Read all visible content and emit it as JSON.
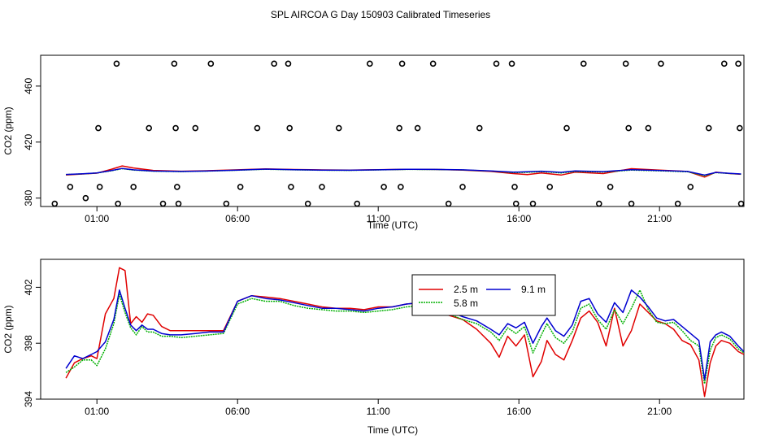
{
  "title": "SPL AIRCOA G  Day 150903  Calibrated Timeseries",
  "colors": {
    "s1": "#e00000",
    "s2": "#00b000",
    "s3": "#0000d0"
  },
  "chart_data": [
    {
      "id": "top",
      "type": "line+scatter",
      "xlabel": "Time (UTC)",
      "ylabel": "CO2 (ppm)",
      "xlim": [
        -1.0,
        24.0
      ],
      "ylim": [
        374.0,
        482.0
      ],
      "xticks": [
        1,
        6,
        11,
        16,
        21
      ],
      "xtick_labels": [
        "01:00",
        "06:00",
        "11:00",
        "16:00",
        "21:00"
      ],
      "yticks": [
        380,
        420,
        460
      ],
      "ytick_labels": [
        "380",
        "420",
        "460"
      ],
      "series": [
        {
          "name": "2.5 m",
          "color": "#e00000",
          "x": [
            -0.1,
            0.5,
            1.0,
            1.5,
            1.9,
            2.3,
            3.0,
            4.0,
            5.0,
            6.0,
            7.0,
            8.0,
            9.0,
            10.0,
            11.0,
            12.0,
            13.0,
            14.0,
            15.0,
            15.8,
            16.3,
            16.8,
            17.5,
            18.0,
            19.0,
            20.0,
            21.0,
            22.0,
            22.6,
            23.0,
            23.5,
            23.9
          ],
          "y": [
            396.5,
            397.2,
            397.8,
            400.5,
            403.0,
            401.5,
            399.8,
            399.2,
            399.6,
            400.2,
            400.8,
            400.4,
            400.1,
            400.0,
            400.3,
            400.6,
            400.5,
            400.0,
            399.0,
            397.5,
            396.8,
            398.0,
            396.5,
            398.5,
            397.5,
            401.0,
            400.0,
            399.0,
            395.0,
            398.5,
            397.5,
            397.0
          ]
        },
        {
          "name": "5.8 m",
          "color": "#00b000",
          "x": [
            -0.1,
            0.5,
            1.0,
            1.5,
            1.9,
            2.3,
            3.0,
            4.0,
            5.0,
            6.0,
            7.0,
            8.0,
            9.0,
            10.0,
            11.0,
            12.0,
            13.0,
            14.0,
            15.0,
            15.8,
            16.3,
            16.8,
            17.5,
            18.0,
            19.0,
            20.0,
            21.0,
            22.0,
            22.6,
            23.0,
            23.5,
            23.9
          ],
          "y": [
            396.8,
            397.3,
            397.9,
            399.5,
            401.0,
            400.0,
            399.2,
            398.9,
            399.3,
            399.9,
            400.6,
            400.2,
            399.9,
            399.8,
            400.1,
            400.5,
            400.4,
            400.1,
            399.3,
            398.2,
            398.4,
            398.9,
            398.0,
            399.0,
            398.6,
            400.0,
            399.5,
            398.8,
            396.0,
            398.2,
            397.6,
            397.1
          ]
        },
        {
          "name": "9.1 m",
          "color": "#0000d0",
          "x": [
            -0.1,
            0.5,
            1.0,
            1.5,
            1.9,
            2.3,
            3.0,
            4.0,
            5.0,
            6.0,
            7.0,
            8.0,
            9.0,
            10.0,
            11.0,
            12.0,
            13.0,
            14.0,
            15.0,
            15.8,
            16.3,
            16.8,
            17.5,
            18.0,
            19.0,
            20.0,
            21.0,
            22.0,
            22.6,
            23.0,
            23.5,
            23.9
          ],
          "y": [
            396.9,
            397.4,
            398.0,
            399.6,
            401.2,
            400.2,
            399.3,
            399.0,
            399.4,
            400.0,
            400.7,
            400.3,
            400.0,
            399.9,
            400.2,
            400.6,
            400.5,
            400.2,
            399.4,
            398.5,
            398.8,
            399.2,
            398.4,
            399.4,
            398.9,
            400.3,
            399.7,
            399.0,
            396.5,
            398.3,
            397.7,
            397.2
          ]
        }
      ],
      "markers": {
        "x": [
          -0.5,
          0.05,
          0.6,
          1.05,
          1.1,
          1.7,
          1.75,
          2.3,
          2.85,
          3.35,
          3.75,
          3.8,
          3.85,
          3.9,
          4.5,
          5.05,
          5.6,
          6.1,
          6.7,
          7.3,
          7.8,
          7.85,
          7.9,
          8.5,
          9.0,
          9.6,
          10.25,
          10.7,
          11.2,
          11.75,
          11.8,
          11.85,
          12.4,
          12.95,
          13.5,
          14.0,
          14.6,
          15.2,
          15.75,
          15.85,
          15.9,
          16.5,
          17.1,
          17.7,
          18.3,
          18.85,
          19.25,
          19.8,
          19.9,
          20.0,
          20.6,
          21.05,
          21.65,
          22.1,
          22.75,
          23.3,
          23.8,
          23.85,
          23.9
        ],
        "y": [
          376,
          388,
          380,
          430,
          388,
          476,
          376,
          388,
          430,
          376,
          476,
          430,
          388,
          376,
          430,
          476,
          376,
          388,
          430,
          476,
          476,
          430,
          388,
          376,
          388,
          430,
          376,
          476,
          388,
          430,
          388,
          476,
          430,
          476,
          376,
          388,
          430,
          476,
          476,
          388,
          376,
          376,
          388,
          430,
          476,
          376,
          388,
          476,
          430,
          376,
          430,
          476,
          376,
          388,
          430,
          476,
          476,
          430,
          376
        ]
      }
    },
    {
      "id": "bottom",
      "type": "line",
      "xlabel": "Time (UTC)",
      "ylabel": "CO2 (ppm)",
      "xlim": [
        -1.0,
        24.0
      ],
      "ylim": [
        394.0,
        404.0
      ],
      "xticks": [
        1,
        6,
        11,
        16,
        21
      ],
      "xtick_labels": [
        "01:00",
        "06:00",
        "11:00",
        "16:00",
        "21:00"
      ],
      "yticks": [
        394,
        398,
        402
      ],
      "ytick_labels": [
        "394",
        "398",
        "402"
      ],
      "legend": {
        "position": "top-center",
        "entries": [
          "2.5 m",
          "5.8 m",
          "9.1 m"
        ]
      },
      "series": [
        {
          "name": "2.5 m",
          "color": "#e00000",
          "x": [
            -0.1,
            0.2,
            0.5,
            0.8,
            1.0,
            1.3,
            1.6,
            1.8,
            2.0,
            2.2,
            2.4,
            2.6,
            2.8,
            3.0,
            3.3,
            3.6,
            4.0,
            4.5,
            5.0,
            5.5,
            6.0,
            6.5,
            7.0,
            7.5,
            8.0,
            8.5,
            9.0,
            9.5,
            10.0,
            10.5,
            11.0,
            11.5,
            12.0,
            12.5,
            13.0,
            13.5,
            14.0,
            14.5,
            15.0,
            15.3,
            15.6,
            15.9,
            16.2,
            16.5,
            16.8,
            17.0,
            17.3,
            17.6,
            17.9,
            18.2,
            18.5,
            18.8,
            19.1,
            19.4,
            19.7,
            20.0,
            20.3,
            20.6,
            20.9,
            21.2,
            21.5,
            21.8,
            22.1,
            22.4,
            22.6,
            22.8,
            23.0,
            23.2,
            23.5,
            23.8,
            24.0
          ],
          "y": [
            395.5,
            396.6,
            396.9,
            397.1,
            396.9,
            400.1,
            401.2,
            403.4,
            403.2,
            399.4,
            399.9,
            399.5,
            400.1,
            400.0,
            399.2,
            398.9,
            398.9,
            398.9,
            398.9,
            398.9,
            401.0,
            401.4,
            401.3,
            401.2,
            401.0,
            400.8,
            400.6,
            400.5,
            400.5,
            400.4,
            400.6,
            400.6,
            400.8,
            400.9,
            400.6,
            400.0,
            399.7,
            399.0,
            398.0,
            397.0,
            398.5,
            397.8,
            398.6,
            395.6,
            396.7,
            398.2,
            397.2,
            396.8,
            398.2,
            399.8,
            400.3,
            399.5,
            397.8,
            400.5,
            397.8,
            398.9,
            400.8,
            400.2,
            399.6,
            399.4,
            399.0,
            398.2,
            397.9,
            396.8,
            394.2,
            396.6,
            397.8,
            398.2,
            398.0,
            397.4,
            397.2
          ]
        },
        {
          "name": "5.8 m",
          "color": "#00b000",
          "x": [
            -0.1,
            0.2,
            0.5,
            0.8,
            1.0,
            1.3,
            1.6,
            1.8,
            2.0,
            2.2,
            2.4,
            2.6,
            2.8,
            3.0,
            3.3,
            3.6,
            4.0,
            4.5,
            5.0,
            5.5,
            6.0,
            6.5,
            7.0,
            7.5,
            8.0,
            8.5,
            9.0,
            9.5,
            10.0,
            10.5,
            11.0,
            11.5,
            12.0,
            12.5,
            13.0,
            13.5,
            14.0,
            14.5,
            15.0,
            15.3,
            15.6,
            15.9,
            16.2,
            16.5,
            16.8,
            17.0,
            17.3,
            17.6,
            17.9,
            18.2,
            18.5,
            18.8,
            19.1,
            19.4,
            19.7,
            20.0,
            20.3,
            20.6,
            20.9,
            21.2,
            21.5,
            21.8,
            22.1,
            22.4,
            22.6,
            22.8,
            23.0,
            23.2,
            23.5,
            23.8,
            24.0
          ],
          "y": [
            395.9,
            396.3,
            396.8,
            396.8,
            396.4,
            397.6,
            399.4,
            401.5,
            400.2,
            399.1,
            398.6,
            399.2,
            398.8,
            398.8,
            398.5,
            398.5,
            398.4,
            398.5,
            398.6,
            398.7,
            400.8,
            401.2,
            401.0,
            401.0,
            400.7,
            400.5,
            400.4,
            400.3,
            400.3,
            400.2,
            400.3,
            400.4,
            400.6,
            400.7,
            400.6,
            400.1,
            399.7,
            399.4,
            398.8,
            398.2,
            399.1,
            398.7,
            399.2,
            397.3,
            398.6,
            399.4,
            398.4,
            398.0,
            398.8,
            400.5,
            400.8,
            399.7,
            399.0,
            400.4,
            399.4,
            400.5,
            401.8,
            400.4,
            399.5,
            399.4,
            399.5,
            398.9,
            398.2,
            397.8,
            395.1,
            397.5,
            398.4,
            398.6,
            398.3,
            397.6,
            397.3
          ]
        },
        {
          "name": "9.1 m",
          "color": "#0000d0",
          "x": [
            -0.1,
            0.2,
            0.5,
            0.8,
            1.0,
            1.3,
            1.6,
            1.8,
            2.0,
            2.2,
            2.4,
            2.6,
            2.8,
            3.0,
            3.3,
            3.6,
            4.0,
            4.5,
            5.0,
            5.5,
            6.0,
            6.5,
            7.0,
            7.5,
            8.0,
            8.5,
            9.0,
            9.5,
            10.0,
            10.5,
            11.0,
            11.5,
            12.0,
            12.5,
            13.0,
            13.5,
            14.0,
            14.5,
            15.0,
            15.3,
            15.6,
            15.9,
            16.2,
            16.5,
            16.8,
            17.0,
            17.3,
            17.6,
            17.9,
            18.2,
            18.5,
            18.8,
            19.1,
            19.4,
            19.7,
            20.0,
            20.3,
            20.6,
            20.9,
            21.2,
            21.5,
            21.8,
            22.1,
            22.4,
            22.6,
            22.8,
            23.0,
            23.2,
            23.5,
            23.8,
            24.0
          ],
          "y": [
            396.2,
            397.1,
            396.9,
            397.2,
            397.4,
            398.1,
            399.7,
            401.8,
            400.5,
            399.3,
            398.9,
            399.3,
            399.0,
            399.0,
            398.7,
            398.6,
            398.6,
            398.7,
            398.8,
            398.8,
            401.0,
            401.4,
            401.2,
            401.1,
            400.9,
            400.7,
            400.5,
            400.5,
            400.4,
            400.3,
            400.5,
            400.6,
            400.8,
            400.9,
            400.8,
            400.3,
            399.9,
            399.6,
            399.0,
            398.6,
            399.4,
            399.1,
            399.5,
            398.0,
            399.2,
            399.8,
            398.9,
            398.5,
            399.3,
            401.0,
            401.2,
            400.1,
            399.5,
            400.9,
            400.2,
            401.8,
            401.3,
            400.6,
            399.8,
            399.6,
            399.7,
            399.2,
            398.7,
            398.2,
            395.4,
            398.1,
            398.6,
            398.8,
            398.5,
            397.8,
            397.4
          ]
        }
      ]
    }
  ]
}
